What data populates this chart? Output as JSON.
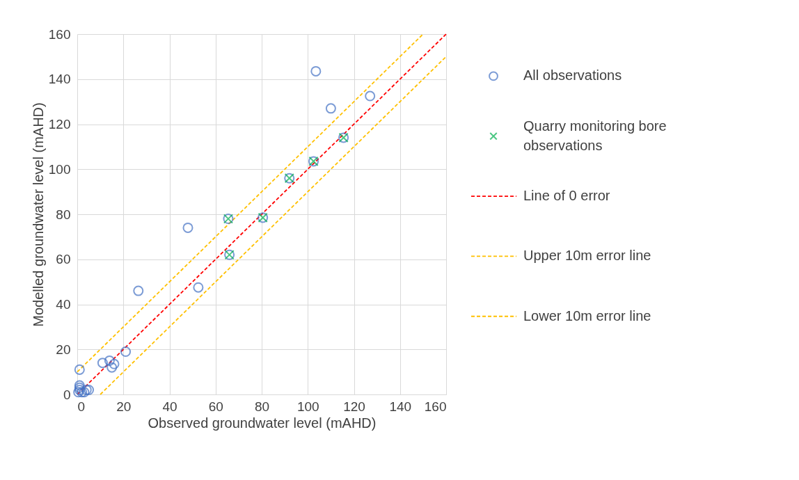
{
  "chart_data": {
    "type": "scatter",
    "xlabel": "Observed groundwater level (mAHD)",
    "ylabel": "Modelled groundwater level (mAHD)",
    "xlim": [
      0,
      160
    ],
    "ylim": [
      0,
      160
    ],
    "xticks": [
      0,
      20,
      40,
      60,
      80,
      100,
      120,
      140,
      160
    ],
    "yticks": [
      0,
      20,
      40,
      60,
      80,
      100,
      120,
      140,
      160
    ],
    "grid": true,
    "legend": "right",
    "series": [
      {
        "name": "All observations",
        "marker": "circle",
        "color": "#4472c4",
        "x": [
          1,
          0.5,
          1,
          1,
          2,
          3,
          4,
          5,
          1,
          11,
          14,
          15,
          16,
          21,
          26.5,
          48,
          52.5,
          65.5,
          66,
          80.5,
          92,
          102.5,
          103.5,
          110,
          115.5,
          127
        ],
        "values": [
          11,
          1,
          3,
          4,
          1,
          1,
          2,
          2,
          2,
          14,
          15,
          12,
          13.5,
          19,
          46,
          74,
          47.5,
          78,
          62,
          78.5,
          96,
          103.5,
          143.5,
          127,
          114,
          132.5
        ]
      },
      {
        "name": "Quarry monitoring bore observations",
        "marker": "cross",
        "color": "#00b050",
        "x": [
          65.5,
          66,
          80.5,
          92,
          102.5,
          115.5
        ],
        "values": [
          78,
          62,
          78.5,
          96,
          103.5,
          114
        ]
      },
      {
        "name": "Line of 0 error",
        "type": "line",
        "line_style": "dashed",
        "color": "#ff0000",
        "x": [
          0,
          160
        ],
        "values": [
          0,
          160
        ]
      },
      {
        "name": "Upper 10m error line",
        "type": "line",
        "line_style": "dashed",
        "color": "#ffc000",
        "x": [
          0,
          150
        ],
        "values": [
          10,
          160
        ]
      },
      {
        "name": "Lower 10m error line",
        "type": "line",
        "line_style": "dashed",
        "color": "#ffc000",
        "x": [
          10,
          160
        ],
        "values": [
          0,
          150
        ]
      }
    ]
  }
}
